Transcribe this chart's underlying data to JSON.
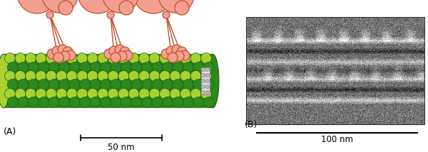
{
  "fig_width": 6.0,
  "fig_height": 2.14,
  "dpi": 100,
  "bg_color": "#ffffff",
  "panel_A": {
    "label": "(A)",
    "label_fontsize": 9,
    "scalebar_text": "50 nm",
    "scalebar_fontsize": 8.5,
    "mt_color_dark": "#2d8a1e",
    "mt_color_light": "#a8d132",
    "mt_outline": "#1a6010",
    "motor_fill": "#f4a090",
    "motor_outline": "#c05030",
    "motor_lw": 0.9
  },
  "panel_B": {
    "label": "(B)",
    "label_fontsize": 9,
    "scalebar_text": "100 nm",
    "scalebar_fontsize": 8.5
  }
}
